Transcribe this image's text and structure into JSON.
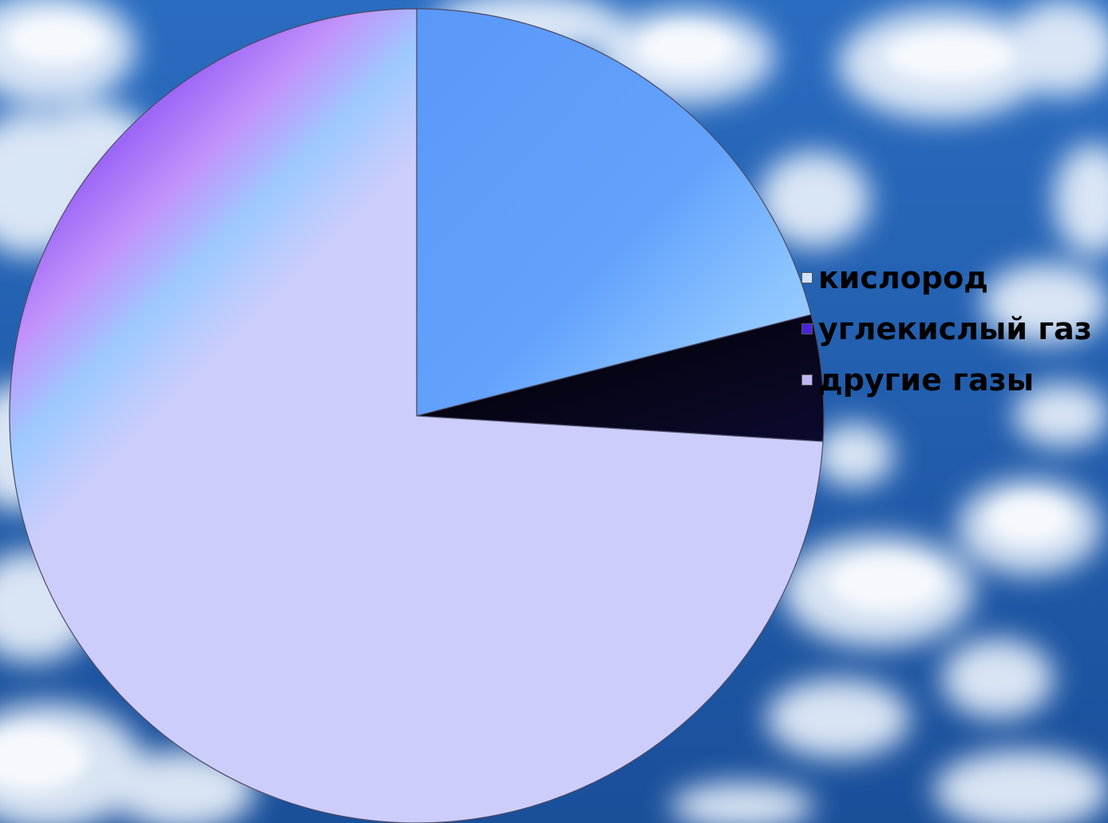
{
  "chart_data": {
    "type": "pie",
    "start_angle_deg": -90,
    "direction": "clockwise",
    "slices": [
      {
        "name": "кислород",
        "value": 21,
        "color": "#5f9ffb"
      },
      {
        "name": "углекислый газ",
        "value": 5,
        "color": "#05051a"
      },
      {
        "name": "другие газы",
        "value": 74,
        "color": "#cdcdfb"
      }
    ],
    "legend": {
      "position": "right",
      "items": [
        {
          "label": "кислород",
          "swatch": "#cfe3ff"
        },
        {
          "label": "углекислый газ",
          "swatch": "#4a24d8"
        },
        {
          "label": "другие газы",
          "swatch": "#bdb7f2"
        }
      ]
    }
  },
  "colors": {
    "sky_top": "#2a6cc0",
    "sky_bottom": "#1a4f9a",
    "cloud": "#e9f1fb",
    "stripe_violet": "#9d63f5",
    "stripe_light_blue": "#9ccaff"
  },
  "background": "sky-with-clouds"
}
